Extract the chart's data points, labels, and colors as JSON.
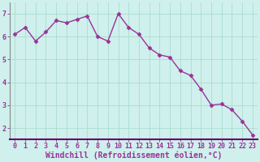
{
  "x": [
    0,
    1,
    2,
    3,
    4,
    5,
    6,
    7,
    8,
    9,
    10,
    11,
    12,
    13,
    14,
    15,
    16,
    17,
    18,
    19,
    20,
    21,
    22,
    23
  ],
  "y": [
    6.1,
    6.4,
    5.8,
    6.2,
    6.7,
    6.6,
    6.75,
    6.9,
    6.0,
    5.8,
    7.0,
    6.4,
    6.1,
    5.5,
    5.2,
    5.1,
    4.5,
    4.3,
    3.7,
    3.0,
    3.05,
    2.8,
    2.3,
    1.7
  ],
  "line_color": "#993399",
  "marker": "D",
  "marker_size": 2.5,
  "linewidth": 1.0,
  "background_color": "#cff0ec",
  "grid_color": "#aaddcc",
  "xlabel": "Windchill (Refroidissement éolien,°C)",
  "xlim": [
    -0.5,
    23.5
  ],
  "ylim": [
    1.5,
    7.5
  ],
  "yticks": [
    2,
    3,
    4,
    5,
    6,
    7
  ],
  "xticks": [
    0,
    1,
    2,
    3,
    4,
    5,
    6,
    7,
    8,
    9,
    10,
    11,
    12,
    13,
    14,
    15,
    16,
    17,
    18,
    19,
    20,
    21,
    22,
    23
  ],
  "tick_label_fontsize": 6,
  "xlabel_fontsize": 7,
  "tick_color": "#993399",
  "xlabel_color": "#993399",
  "spine_color": "#888888",
  "bottom_spine_color": "#660066",
  "grid_linewidth": 0.6
}
